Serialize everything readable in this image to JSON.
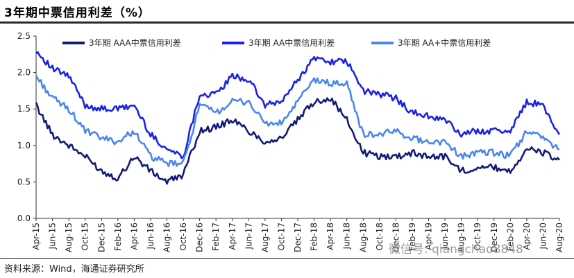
{
  "header": {
    "title": "3年期中票信用利差（%）"
  },
  "footer": {
    "source": "资料来源：Wind，海通证券研究所"
  },
  "watermark": {
    "text": "微信号: qiangchao8848"
  },
  "chart_data": {
    "type": "line",
    "title": "3年期中票信用利差（%）",
    "xlabel": "",
    "ylabel": "",
    "ylim": [
      0,
      2.5
    ],
    "yticks": [
      "0.0",
      "0.5",
      "1.0",
      "1.5",
      "2.0",
      "2.5"
    ],
    "categories": [
      "Apr-15",
      "Jun-15",
      "Aug-15",
      "Oct-15",
      "Dec-15",
      "Feb-16",
      "Apr-16",
      "Jun-16",
      "Aug-16",
      "Oct-16",
      "Dec-16",
      "Feb-17",
      "Apr-17",
      "Jun-17",
      "Aug-17",
      "Oct-17",
      "Dec-17",
      "Feb-18",
      "Apr-18",
      "Jun-18",
      "Aug-18",
      "Oct-18",
      "Dec-18",
      "Feb-19",
      "Apr-19",
      "Jun-19",
      "Aug-19",
      "Oct-19",
      "Dec-19",
      "Feb-20",
      "Apr-20",
      "Jun-20",
      "Aug-20"
    ],
    "series": [
      {
        "name": "3年期 AAA中票信用利差",
        "color": "#141a78",
        "values": [
          1.55,
          1.15,
          1.0,
          0.85,
          0.65,
          0.55,
          0.85,
          0.65,
          0.5,
          0.6,
          1.2,
          1.25,
          1.35,
          1.2,
          1.05,
          1.1,
          1.35,
          1.6,
          1.65,
          1.35,
          0.9,
          0.85,
          0.85,
          0.9,
          0.85,
          0.85,
          0.65,
          0.7,
          0.7,
          0.65,
          0.95,
          0.9,
          0.8
        ]
      },
      {
        "name": "3年期 AA中票信用利差",
        "color": "#1a22e8",
        "values": [
          2.3,
          2.05,
          1.95,
          1.55,
          1.5,
          1.5,
          1.55,
          1.15,
          0.95,
          0.85,
          1.7,
          1.7,
          1.95,
          1.9,
          1.55,
          1.6,
          1.9,
          2.2,
          2.15,
          2.15,
          1.75,
          1.7,
          1.65,
          1.45,
          1.4,
          1.35,
          1.15,
          1.2,
          1.2,
          1.2,
          1.6,
          1.55,
          1.15
        ]
      },
      {
        "name": "3年期 AA+中票信用利差",
        "color": "#4a86f0",
        "values": [
          1.95,
          1.65,
          1.5,
          1.2,
          1.1,
          1.05,
          1.2,
          0.85,
          0.75,
          0.75,
          1.55,
          1.45,
          1.6,
          1.6,
          1.3,
          1.3,
          1.6,
          1.9,
          1.85,
          1.85,
          1.15,
          1.15,
          1.2,
          1.1,
          1.05,
          1.05,
          0.85,
          0.9,
          0.9,
          0.85,
          1.2,
          1.1,
          0.95
        ]
      }
    ],
    "legend_position": "top"
  }
}
